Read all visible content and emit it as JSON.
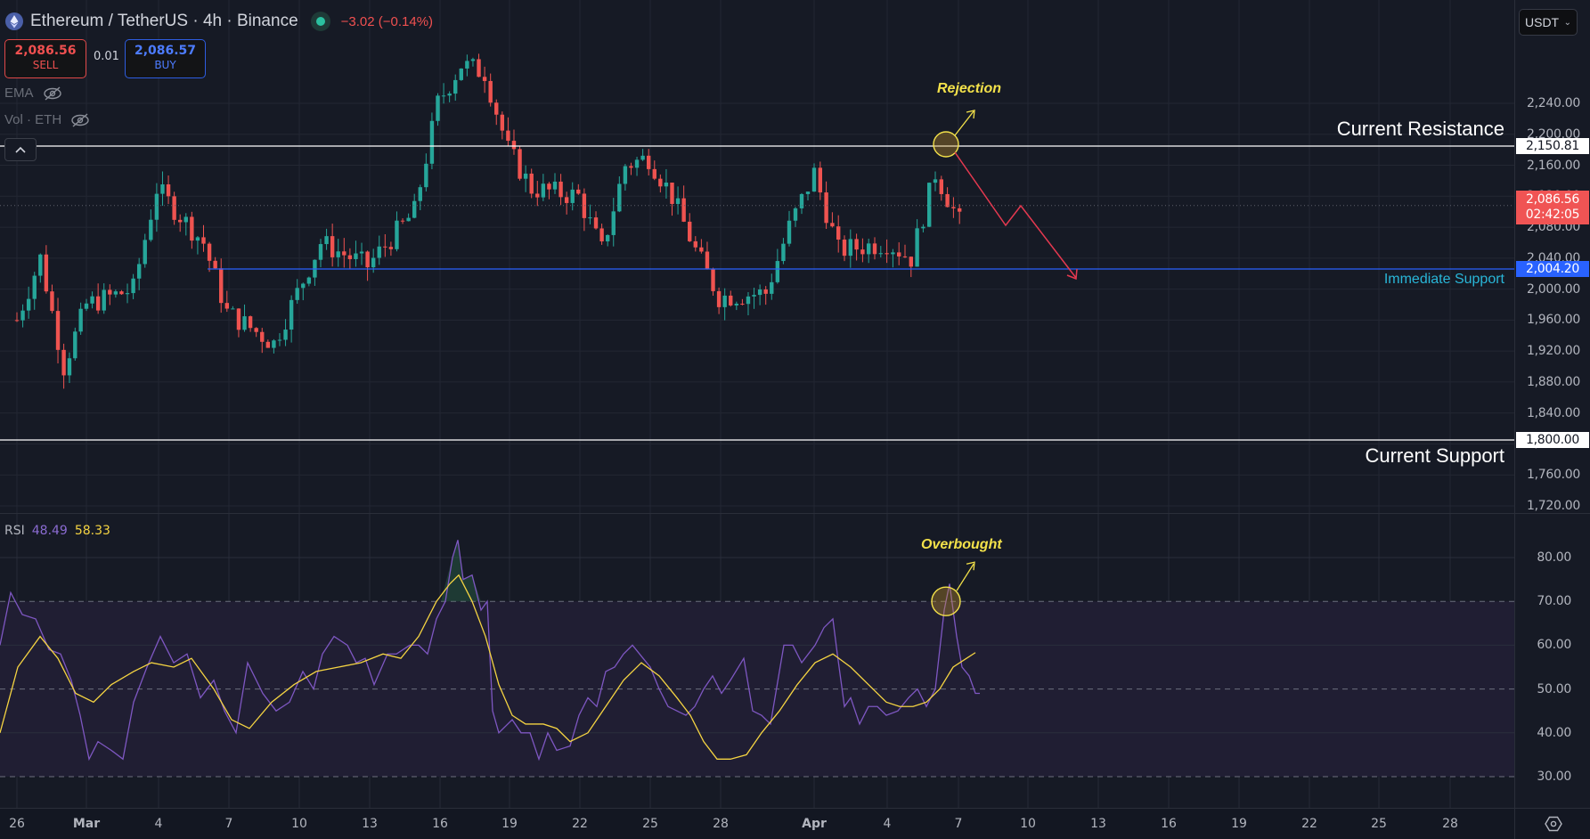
{
  "header": {
    "symbol": "Ethereum / TetherUS · 4h · Binance",
    "change": "−3.02 (−0.14%)",
    "market_status": "open"
  },
  "trade": {
    "sell_price": "2,086.56",
    "sell_label": "SELL",
    "spread": "0.01",
    "buy_price": "2,086.57",
    "buy_label": "BUY"
  },
  "indicators": [
    {
      "name": "EMA",
      "visibility": "hidden"
    },
    {
      "name": "Vol · ETH",
      "visibility": "hidden"
    }
  ],
  "currency_select": {
    "value": "USDT"
  },
  "price_axis": {
    "labels": [
      "2,240.00",
      "2,200.00",
      "2,160.00",
      "2,120.00",
      "2,080.00",
      "2,040.00",
      "2,000.00",
      "1,960.00",
      "1,920.00",
      "1,880.00",
      "1,840.00",
      "1,800.00",
      "1,760.00",
      "1,720.00"
    ],
    "tags": {
      "resistance": "2,150.81",
      "current_price": "2,086.56",
      "countdown": "02:42:05",
      "immediate_support": "2,004.20",
      "current_support": "1,800.00"
    }
  },
  "annotations": {
    "current_resistance": "Current Resistance",
    "immediate_support": "Immediate Support",
    "current_support": "Current Support",
    "rejection": "Rejection",
    "overbought": "Overbought"
  },
  "rsi": {
    "label": "RSI",
    "value": "48.49",
    "ma_value": "58.33",
    "axis_labels": [
      "80.00",
      "70.00",
      "60.00",
      "50.00",
      "40.00",
      "30.00"
    ]
  },
  "time_axis": {
    "labels": [
      "26",
      "Mar",
      "4",
      "7",
      "10",
      "13",
      "16",
      "19",
      "22",
      "25",
      "28",
      "Apr",
      "4",
      "7",
      "10",
      "13",
      "16",
      "19",
      "22",
      "25",
      "28"
    ]
  },
  "colors": {
    "background": "#161a25",
    "up": "#26a69a",
    "down": "#ef5350",
    "resistance_line": "#ffffff",
    "support_line": "#2962ff",
    "rsi_line": "#7e57c2",
    "rsi_ma": "#f5d442",
    "annotation": "#f3e14a",
    "projection": "#e53950"
  },
  "chart_data": {
    "type": "candlestick",
    "title": "Ethereum / TetherUS · 4h · Binance",
    "ylabel": "USDT",
    "ylim": [
      1700,
      2275
    ],
    "horizontal_levels": [
      {
        "name": "Current Resistance",
        "value": 2150.81
      },
      {
        "name": "Immediate Support",
        "value": 2004.2
      },
      {
        "name": "Current Support",
        "value": 1800.0
      }
    ],
    "last_price": 2086.56,
    "approx_close_path": [
      {
        "date": "Feb 26",
        "close": 1960
      },
      {
        "date": "Feb 27",
        "close": 2040
      },
      {
        "date": "Feb 28",
        "close": 1900
      },
      {
        "date": "Mar 1",
        "close": 1980
      },
      {
        "date": "Mar 3",
        "close": 2000
      },
      {
        "date": "Mar 4",
        "close": 2130
      },
      {
        "date": "Mar 6",
        "close": 2060
      },
      {
        "date": "Mar 7",
        "close": 1970
      },
      {
        "date": "Mar 9",
        "close": 1930
      },
      {
        "date": "Mar 11",
        "close": 2060
      },
      {
        "date": "Mar 13",
        "close": 2030
      },
      {
        "date": "Mar 15",
        "close": 2100
      },
      {
        "date": "Mar 16",
        "close": 2240
      },
      {
        "date": "Mar 17",
        "close": 2290
      },
      {
        "date": "Mar 18",
        "close": 2280
      },
      {
        "date": "Mar 19",
        "close": 2180
      },
      {
        "date": "Mar 20",
        "close": 2130
      },
      {
        "date": "Mar 22",
        "close": 2120
      },
      {
        "date": "Mar 23",
        "close": 2050
      },
      {
        "date": "Mar 24",
        "close": 2160
      },
      {
        "date": "Mar 25",
        "close": 2170
      },
      {
        "date": "Mar 26",
        "close": 2120
      },
      {
        "date": "Mar 27",
        "close": 2050
      },
      {
        "date": "Mar 28",
        "close": 1990
      },
      {
        "date": "Mar 30",
        "close": 1995
      },
      {
        "date": "Mar 31",
        "close": 2080
      },
      {
        "date": "Apr 1",
        "close": 2150
      },
      {
        "date": "Apr 2",
        "close": 2050
      },
      {
        "date": "Apr 4",
        "close": 2060
      },
      {
        "date": "Apr 5",
        "close": 2040
      },
      {
        "date": "Apr 6",
        "close": 2150
      },
      {
        "date": "Apr 7",
        "close": 2086.56
      }
    ],
    "projection": [
      {
        "date": "Apr 7",
        "value": 2150
      },
      {
        "date": "Apr 9",
        "value": 2055
      },
      {
        "date": "Apr 10",
        "value": 2075
      },
      {
        "date": "Apr 12",
        "value": 1995
      }
    ],
    "rsi": {
      "ylim": [
        25,
        85
      ],
      "bands": [
        30,
        50,
        70
      ],
      "last": 48.49,
      "ma_last": 58.33
    }
  }
}
